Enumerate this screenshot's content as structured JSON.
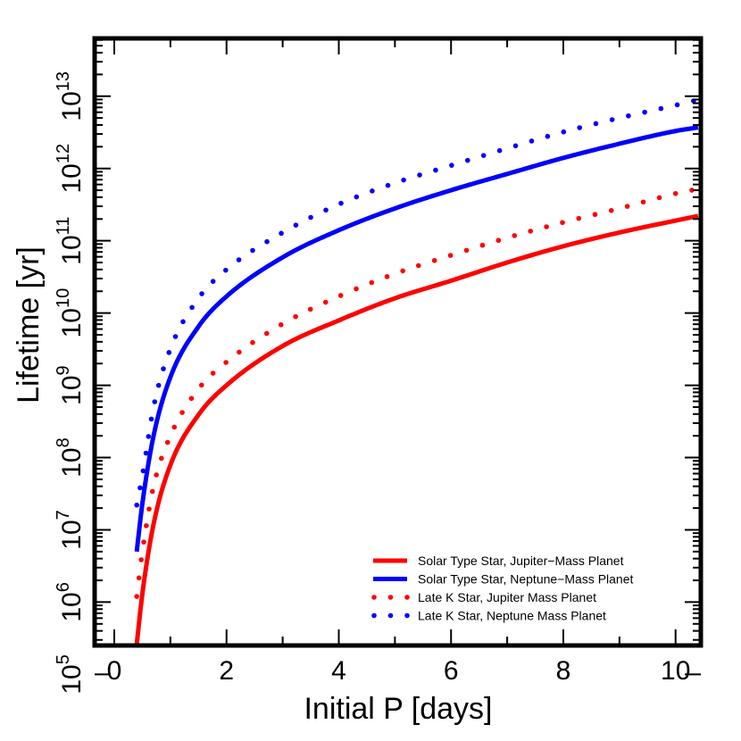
{
  "chart_data": {
    "type": "line",
    "title": "",
    "xlabel": "Initial P [days]",
    "ylabel": "Lifetime [yr]",
    "xlim": [
      -0.35,
      10.45
    ],
    "ylim": [
      5.4,
      13.8
    ],
    "yscale": "log",
    "xticks": [
      0,
      2,
      4,
      6,
      8,
      10
    ],
    "xtick_labels": [
      "0",
      "2",
      "4",
      "6",
      "8",
      "10"
    ],
    "yticks_log10": [
      5,
      6,
      7,
      8,
      9,
      10,
      11,
      12,
      13
    ],
    "ytick_labels": [
      {
        "base": "10",
        "exp": "5"
      },
      {
        "base": "10",
        "exp": "6"
      },
      {
        "base": "10",
        "exp": "7"
      },
      {
        "base": "10",
        "exp": "8"
      },
      {
        "base": "10",
        "exp": "9"
      },
      {
        "base": "10",
        "exp": "10"
      },
      {
        "base": "10",
        "exp": "11"
      },
      {
        "base": "10",
        "exp": "12"
      },
      {
        "base": "10",
        "exp": "13"
      }
    ],
    "grid": false,
    "legend_position": "bottom-right",
    "series": [
      {
        "name": "Solar Type Star, Jupiter−Mass Planet",
        "color": "#ff0000",
        "style": "solid",
        "x": [
          0.4,
          0.5,
          0.7,
          1.0,
          1.5,
          2.0,
          3.0,
          4.0,
          5.0,
          6.0,
          7.0,
          8.0,
          9.0,
          10.0,
          10.4
        ],
        "y": [
          "2.6e5",
          "1.3e6",
          "1.2e7",
          "7.9e7",
          "3.9e8",
          "1.0e9",
          "3.5e9",
          "7.9e9",
          "1.6e10",
          "2.8e10",
          "5.0e10",
          "8.4e10",
          "1.3e11",
          "1.9e11",
          "2.2e11"
        ]
      },
      {
        "name": "Solar Type Star, Neptune−Mass Planet",
        "color": "#0000ff",
        "style": "solid",
        "x": [
          0.4,
          0.5,
          0.7,
          1.0,
          1.5,
          2.0,
          3.0,
          4.0,
          5.0,
          6.0,
          7.0,
          8.0,
          9.0,
          10.0,
          10.4
        ],
        "y": [
          "5.0e6",
          "2.3e7",
          "2.0e8",
          "1.3e9",
          "6.5e9",
          "1.7e10",
          "5.9e10",
          "1.4e11",
          "2.8e11",
          "5.0e11",
          "8.4e11",
          "1.4e12",
          "2.2e12",
          "3.3e12",
          "3.7e12"
        ]
      },
      {
        "name": "Late K Star, Jupiter Mass Planet",
        "color": "#ff0000",
        "style": "dotted",
        "x": [
          0.4,
          0.5,
          0.7,
          1.0,
          1.5,
          2.0,
          3.0,
          4.0,
          5.0,
          6.0,
          7.0,
          8.0,
          9.0,
          10.0,
          10.4
        ],
        "y": [
          "1.2e6",
          "5.0e6",
          "4.0e7",
          "2.0e8",
          "8.9e8",
          "2.1e9",
          "7.1e9",
          "1.7e10",
          "3.5e10",
          "6.3e10",
          "1.1e11",
          "1.8e11",
          "2.8e11",
          "4.5e11",
          "5.2e11"
        ]
      },
      {
        "name": "Late K Star, Neptune Mass Planet",
        "color": "#0000ff",
        "style": "dotted",
        "x": [
          0.4,
          0.5,
          0.7,
          1.0,
          1.5,
          2.0,
          3.0,
          4.0,
          5.0,
          6.0,
          7.0,
          8.0,
          9.0,
          10.0,
          10.4
        ],
        "y": [
          "2.2e7",
          "5.6e7",
          "5.0e8",
          "3.2e9",
          "1.6e10",
          "4.0e10",
          "1.3e11",
          "3.2e11",
          "6.3e11",
          "1.1e12",
          "1.9e12",
          "3.2e12",
          "5.0e12",
          "7.5e12",
          "8.9e12"
        ]
      }
    ]
  }
}
